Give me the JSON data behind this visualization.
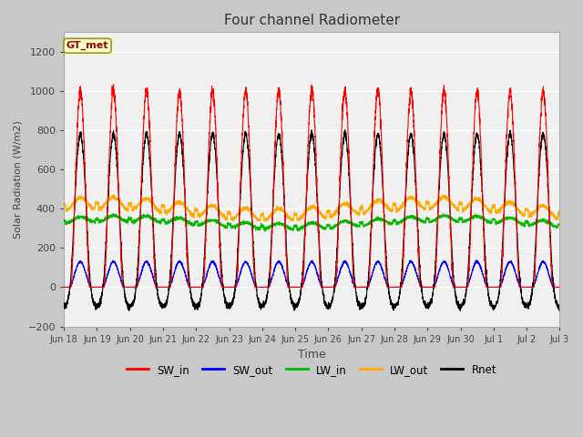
{
  "title": "Four channel Radiometer",
  "xlabel": "Time",
  "ylabel": "Solar Radiation (W/m2)",
  "ylim": [
    -200,
    1300
  ],
  "yticks": [
    -200,
    0,
    200,
    400,
    600,
    800,
    1000,
    1200
  ],
  "fig_bg_color": "#c8c8c8",
  "plot_bg_color": "#f0f0f0",
  "legend_label": "GT_met",
  "legend_color_bg": "#ffffcc",
  "legend_color_border": "#999900",
  "series_colors": {
    "SW_in": "#ff0000",
    "SW_out": "#0000ff",
    "LW_in": "#00bb00",
    "LW_out": "#ffaa00",
    "Rnet": "#000000"
  },
  "xtick_labels": [
    "Jun 18",
    "Jun 19",
    "Jun 20",
    "Jun 21",
    "Jun 22",
    "Jun 23",
    "Jun 24",
    "Jun 25",
    "Jun 26",
    "Jun 27",
    "Jun 28",
    "Jun 29",
    "Jun 30",
    "Jul 1",
    "Jul 2",
    "Jul 3"
  ],
  "num_days": 15,
  "SW_in_peak": 1000,
  "SW_out_peak": 130,
  "LW_in_mean": 330,
  "LW_out_mean": 400,
  "Rnet_peak": 780,
  "Rnet_night": -100
}
